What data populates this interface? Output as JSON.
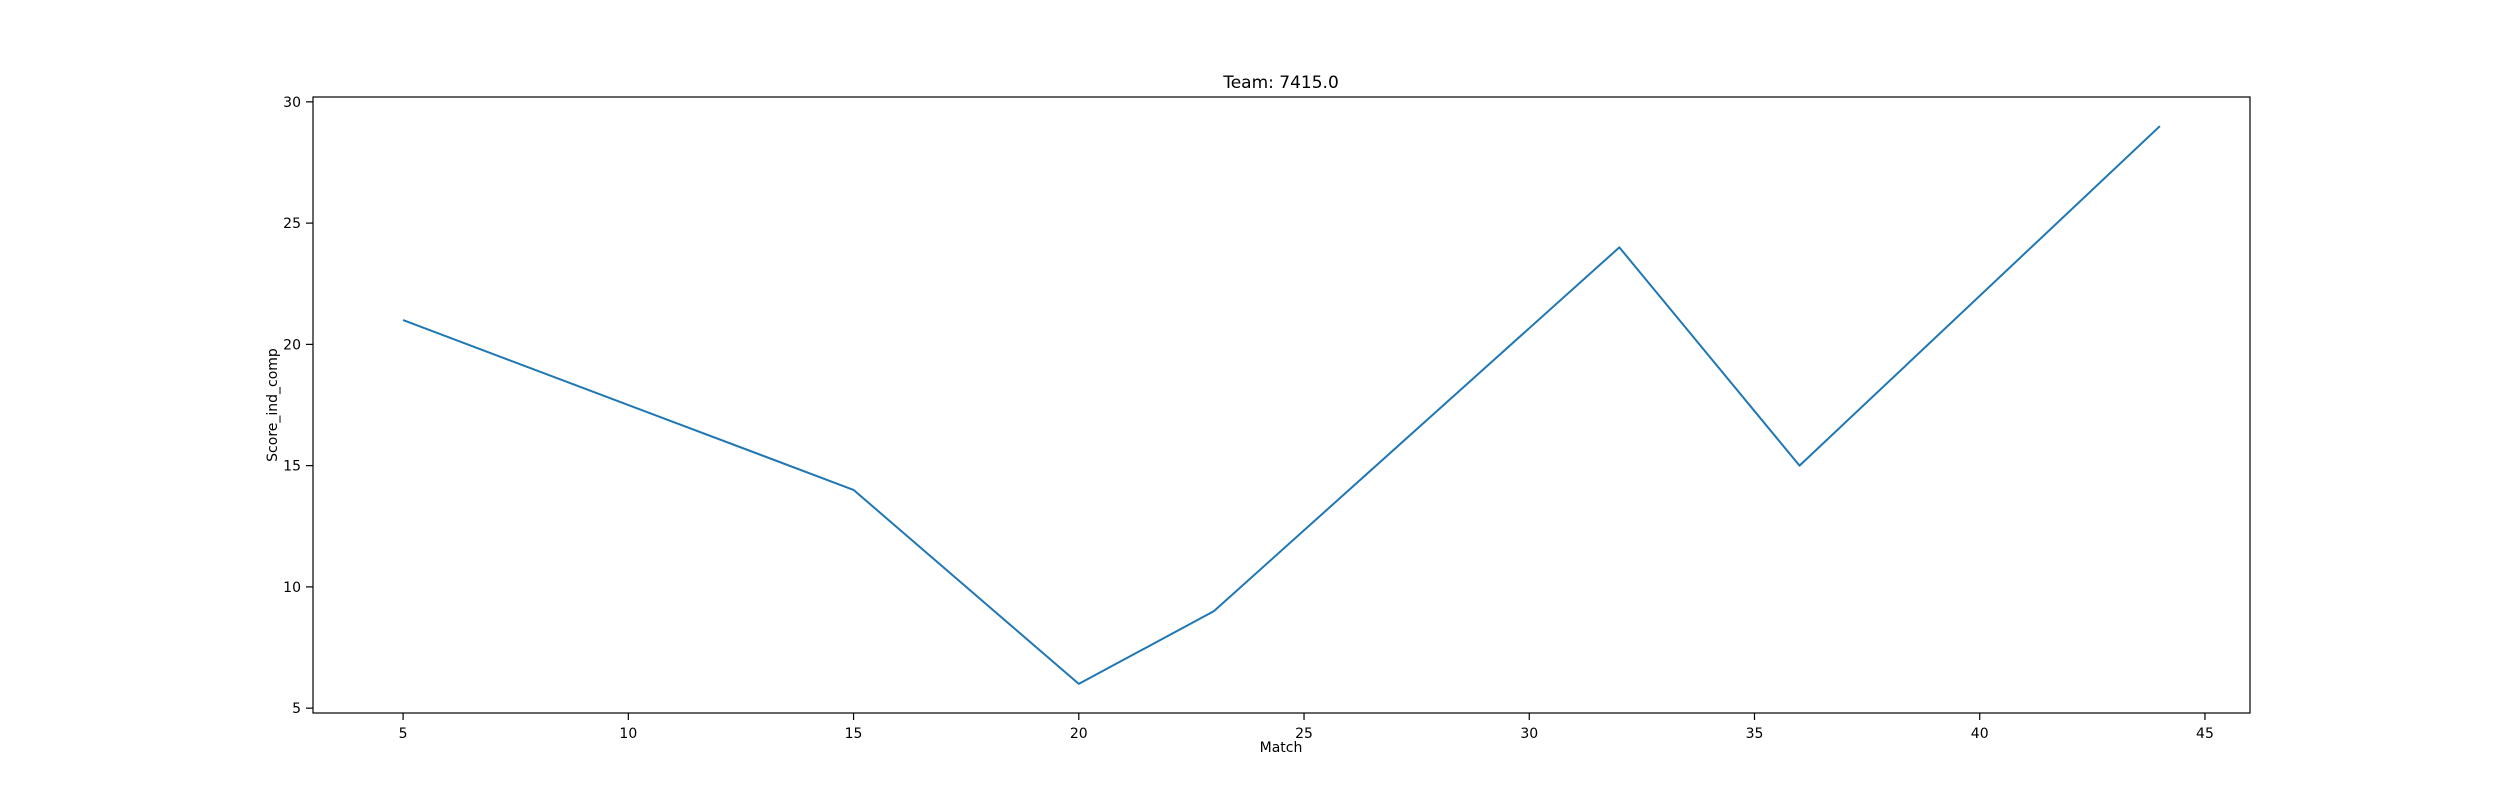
{
  "chart_data": {
    "type": "line",
    "title": "Team: 7415.0",
    "xlabel": "Match",
    "ylabel": "Score_ind_comp",
    "xlim": [
      3,
      46
    ],
    "ylim": [
      4.8,
      30.2
    ],
    "xticks": [
      5,
      10,
      15,
      20,
      25,
      30,
      35,
      40,
      45
    ],
    "yticks": [
      5,
      10,
      15,
      20,
      25,
      30
    ],
    "grid": false,
    "series": [
      {
        "x": [
          5,
          15,
          20,
          23,
          32,
          36,
          44
        ],
        "y": [
          21,
          14,
          6,
          9,
          24,
          15,
          29
        ],
        "color": "#1f77b4"
      }
    ]
  }
}
